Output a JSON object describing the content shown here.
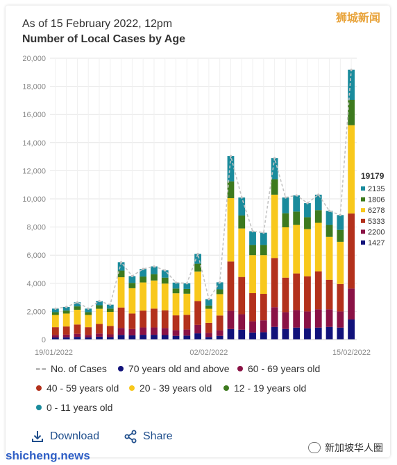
{
  "header": {
    "subtitle": "As of 15 February 2022, 12pm",
    "title": "Number of Local Cases by Age"
  },
  "watermarks": {
    "top_right": "狮城新闻",
    "bottom_left": "shicheng.news",
    "bottom_right": "新加坡华人圈"
  },
  "actions": {
    "download": "Download",
    "share": "Share"
  },
  "tooltip": {
    "total": "19179",
    "rows": [
      {
        "label": "2135",
        "color": "#1a8b9c"
      },
      {
        "label": "1806",
        "color": "#3d7a1e"
      },
      {
        "label": "6278",
        "color": "#f8c81c"
      },
      {
        "label": "5333",
        "color": "#b3311c"
      },
      {
        "label": "2200",
        "color": "#8a1245"
      },
      {
        "label": "1427",
        "color": "#11127a"
      }
    ]
  },
  "legend": [
    {
      "label": "No. of Cases",
      "kind": "dash",
      "color": "#bcbcbc"
    },
    {
      "label": "70 years old and above",
      "kind": "dot",
      "color": "#11127a"
    },
    {
      "label": "60 - 69 years old",
      "kind": "dot",
      "color": "#8a1245"
    },
    {
      "label": "40 - 59 years old",
      "kind": "dot",
      "color": "#b3311c"
    },
    {
      "label": "20 - 39 years old",
      "kind": "dot",
      "color": "#f8c81c"
    },
    {
      "label": "12 - 19 years old",
      "kind": "dot",
      "color": "#3d7a1e"
    },
    {
      "label": "0 - 11 years old",
      "kind": "dot",
      "color": "#1a8b9c"
    }
  ],
  "chart_data": {
    "type": "bar",
    "stacked": true,
    "ylim": [
      0,
      20000
    ],
    "yticks": [
      "0",
      "2,000",
      "4,000",
      "6,000",
      "8,000",
      "10,000",
      "12,000",
      "14,000",
      "16,000",
      "18,000",
      "20,000"
    ],
    "ytick_values": [
      0,
      2000,
      4000,
      6000,
      8000,
      10000,
      12000,
      14000,
      16000,
      18000,
      20000
    ],
    "xtick_labels": [
      {
        "label": "19/01/2022",
        "index": 0
      },
      {
        "label": "02/02/2022",
        "index": 14
      },
      {
        "label": "15/02/2022",
        "index": 27
      }
    ],
    "grid": true,
    "series": [
      {
        "name": "70 years old and above",
        "color": "#11127a",
        "values": [
          150,
          160,
          190,
          150,
          200,
          170,
          330,
          300,
          340,
          340,
          320,
          260,
          280,
          440,
          180,
          260,
          750,
          700,
          500,
          520,
          900,
          750,
          850,
          800,
          850,
          900,
          850,
          1427
        ]
      },
      {
        "name": "60 - 69 years old",
        "color": "#8a1245",
        "values": [
          180,
          190,
          220,
          180,
          230,
          200,
          500,
          450,
          520,
          520,
          500,
          410,
          430,
          600,
          300,
          400,
          1300,
          1100,
          800,
          850,
          1400,
          1200,
          1250,
          1200,
          1300,
          1250,
          1150,
          2200
        ]
      },
      {
        "name": "40 - 59 years old",
        "color": "#b3311c",
        "values": [
          550,
          580,
          660,
          550,
          680,
          600,
          1450,
          1100,
          1200,
          1340,
          1260,
          1050,
          1050,
          1700,
          710,
          1050,
          3500,
          2650,
          2000,
          1880,
          3500,
          2450,
          2600,
          2500,
          2700,
          2100,
          1950,
          5333
        ]
      },
      {
        "name": "20 - 39 years old",
        "color": "#f8c81c",
        "values": [
          870,
          920,
          1050,
          870,
          1080,
          1000,
          2150,
          1800,
          2000,
          2000,
          1900,
          1570,
          1500,
          2100,
          1000,
          1520,
          4500,
          3450,
          2700,
          2750,
          4500,
          3580,
          3450,
          3350,
          3450,
          3050,
          3000,
          6278
        ]
      },
      {
        "name": "12 - 19 years old",
        "color": "#3d7a1e",
        "values": [
          200,
          210,
          240,
          200,
          250,
          230,
          470,
          380,
          420,
          450,
          420,
          340,
          340,
          550,
          230,
          340,
          1200,
          920,
          720,
          720,
          1100,
          1000,
          950,
          850,
          900,
          850,
          850,
          1806
        ]
      },
      {
        "name": "0 - 11 years old",
        "color": "#1a8b9c",
        "values": [
          250,
          260,
          290,
          250,
          300,
          280,
          600,
          480,
          540,
          550,
          520,
          420,
          400,
          700,
          450,
          500,
          1800,
          1280,
          980,
          880,
          1500,
          1120,
          1150,
          1000,
          1100,
          1000,
          1050,
          2135
        ]
      }
    ],
    "totals": [
      2200,
      2320,
      2650,
      2200,
      2740,
      2480,
      5500,
      4510,
      5020,
      5200,
      4920,
      4050,
      4000,
      6090,
      2870,
      4070,
      13050,
      10100,
      7700,
      7600,
      12900,
      10100,
      10250,
      9700,
      10300,
      9150,
      8850,
      19179
    ],
    "totals_series_name": "No. of Cases"
  }
}
